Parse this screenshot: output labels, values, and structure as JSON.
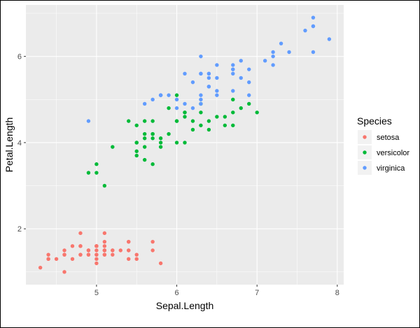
{
  "chart_data": {
    "type": "scatter",
    "xlabel": "Sepal.Length",
    "ylabel": "Petal.Length",
    "xlim": [
      4.12,
      8.08
    ],
    "ylim": [
      0.705,
      7.195
    ],
    "x_ticks": [
      5,
      6,
      7,
      8
    ],
    "y_ticks": [
      2,
      4,
      6
    ],
    "grid": true,
    "legend": {
      "title": "Species",
      "placement": "right"
    },
    "series": [
      {
        "name": "setosa",
        "color": "#F8766D",
        "x": [
          5.1,
          4.9,
          4.7,
          4.6,
          5.0,
          5.4,
          4.6,
          5.0,
          4.4,
          4.9,
          5.4,
          4.8,
          4.8,
          4.3,
          5.8,
          5.7,
          5.4,
          5.1,
          5.7,
          5.1,
          5.4,
          5.1,
          4.6,
          5.1,
          4.8,
          5.0,
          5.0,
          5.2,
          5.2,
          4.7,
          4.8,
          5.4,
          5.2,
          5.5,
          4.9,
          5.0,
          5.5,
          4.9,
          4.4,
          5.1,
          5.0,
          4.5,
          4.4,
          5.0,
          5.1,
          4.8,
          5.1,
          4.6,
          5.3,
          5.0
        ],
        "y": [
          1.4,
          1.4,
          1.3,
          1.5,
          1.4,
          1.7,
          1.4,
          1.5,
          1.4,
          1.5,
          1.5,
          1.6,
          1.4,
          1.1,
          1.2,
          1.5,
          1.3,
          1.4,
          1.7,
          1.5,
          1.7,
          1.5,
          1.0,
          1.7,
          1.9,
          1.6,
          1.6,
          1.5,
          1.4,
          1.6,
          1.6,
          1.5,
          1.5,
          1.4,
          1.5,
          1.2,
          1.3,
          1.4,
          1.3,
          1.5,
          1.3,
          1.3,
          1.3,
          1.6,
          1.9,
          1.4,
          1.6,
          1.4,
          1.5,
          1.4
        ]
      },
      {
        "name": "versicolor",
        "color": "#00BA38",
        "x": [
          7.0,
          6.4,
          6.9,
          5.5,
          6.5,
          5.7,
          6.3,
          4.9,
          6.6,
          5.2,
          5.0,
          5.9,
          6.0,
          6.1,
          5.6,
          6.7,
          5.6,
          5.8,
          6.2,
          5.6,
          5.9,
          6.1,
          6.3,
          6.1,
          6.4,
          6.6,
          6.8,
          6.7,
          6.0,
          5.7,
          5.5,
          5.5,
          5.8,
          6.0,
          5.4,
          6.0,
          6.7,
          6.3,
          5.6,
          5.5,
          5.5,
          6.1,
          5.8,
          5.0,
          5.6,
          5.7,
          5.7,
          6.2,
          5.1,
          5.7
        ],
        "y": [
          4.7,
          4.5,
          4.9,
          4.0,
          4.6,
          4.5,
          4.7,
          3.3,
          4.6,
          3.9,
          3.5,
          4.2,
          4.0,
          4.7,
          3.6,
          4.4,
          4.5,
          4.1,
          4.5,
          3.9,
          4.8,
          4.0,
          4.9,
          4.7,
          4.3,
          4.4,
          4.8,
          5.0,
          4.5,
          3.5,
          3.8,
          3.7,
          3.9,
          5.1,
          4.5,
          4.5,
          4.7,
          4.4,
          4.1,
          4.0,
          4.4,
          4.6,
          4.0,
          3.3,
          4.2,
          4.2,
          4.2,
          4.3,
          3.0,
          4.1
        ]
      },
      {
        "name": "virginica",
        "color": "#619CFF",
        "x": [
          6.3,
          5.8,
          7.1,
          6.3,
          6.5,
          7.6,
          4.9,
          7.3,
          6.7,
          7.2,
          6.5,
          6.4,
          6.8,
          5.7,
          5.8,
          6.4,
          6.5,
          7.7,
          7.7,
          6.0,
          6.9,
          5.6,
          7.7,
          6.3,
          6.7,
          7.2,
          6.2,
          6.1,
          6.4,
          7.2,
          7.4,
          7.9,
          6.4,
          6.3,
          6.1,
          7.7,
          6.3,
          6.4,
          6.0,
          6.9,
          6.7,
          6.9,
          5.8,
          6.8,
          6.7,
          6.7,
          6.3,
          6.5,
          6.2,
          5.9
        ],
        "y": [
          6.0,
          5.1,
          5.9,
          5.6,
          5.8,
          6.6,
          4.5,
          6.3,
          5.8,
          6.1,
          5.1,
          5.3,
          5.5,
          5.0,
          5.1,
          5.3,
          5.5,
          6.7,
          6.9,
          5.0,
          5.7,
          4.9,
          6.7,
          4.9,
          5.7,
          6.0,
          4.8,
          4.9,
          5.6,
          5.8,
          6.1,
          6.4,
          5.6,
          5.1,
          5.6,
          6.1,
          5.6,
          5.5,
          4.8,
          5.4,
          5.6,
          5.1,
          5.1,
          5.9,
          5.7,
          5.2,
          5.0,
          5.2,
          5.4,
          5.1
        ]
      }
    ]
  }
}
